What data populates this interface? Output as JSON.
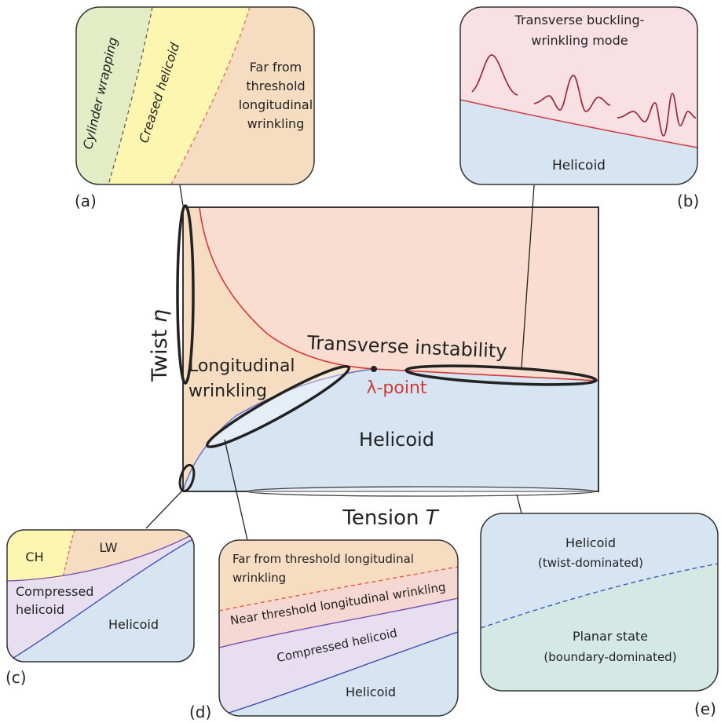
{
  "main": {
    "y_axis_label": "Twist",
    "y_axis_symbol": "η",
    "x_axis_label": "Tension",
    "x_axis_symbol": "T",
    "region_longitudinal_line1": "Longitudinal",
    "region_longitudinal_line2": "wrinkling",
    "region_transverse": "Transverse instability",
    "lambda_point": "λ-point",
    "region_helicoid": "Helicoid"
  },
  "panel_a": {
    "tag": "(a)",
    "cylinder": "Cylinder wrapping",
    "creased": "Creased helicoid",
    "far_line1": "Far from",
    "far_line2": "threshold",
    "far_line3": "longitudinal",
    "far_line4": "wrinkling"
  },
  "panel_b": {
    "tag": "(b)",
    "title_line1": "Transverse buckling-",
    "title_line2": "wrinkling mode",
    "helicoid": "Helicoid"
  },
  "panel_c": {
    "tag": "(c)",
    "ch": "CH",
    "lw": "LW",
    "compressed_line1": "Compressed",
    "compressed_line2": "helicoid",
    "helicoid": "Helicoid"
  },
  "panel_d": {
    "tag": "(d)",
    "far_line1": "Far from threshold longitudinal",
    "far_line2": "wrinkling",
    "near": "Near threshold longitudinal wrinkling",
    "compressed": "Compressed helicoid",
    "helicoid": "Helicoid"
  },
  "panel_e": {
    "tag": "(e)",
    "helicoid_line1": "Helicoid",
    "helicoid_line2": "(twist-dominated)",
    "planar_line1": "Planar state",
    "planar_line2": "(boundary-dominated)"
  },
  "colors": {
    "orange_region": "#f6dcc0",
    "pink_region": "#f8ddd0",
    "blue_region": "#d7e4f2",
    "yellow_region": "#fdf6b0",
    "green_region": "#e3ecc4",
    "purple_region": "#e7dff0",
    "teal_region": "#d4e9e3",
    "red_curve": "#d23a3a",
    "blue_curve": "#3b4fb0"
  }
}
